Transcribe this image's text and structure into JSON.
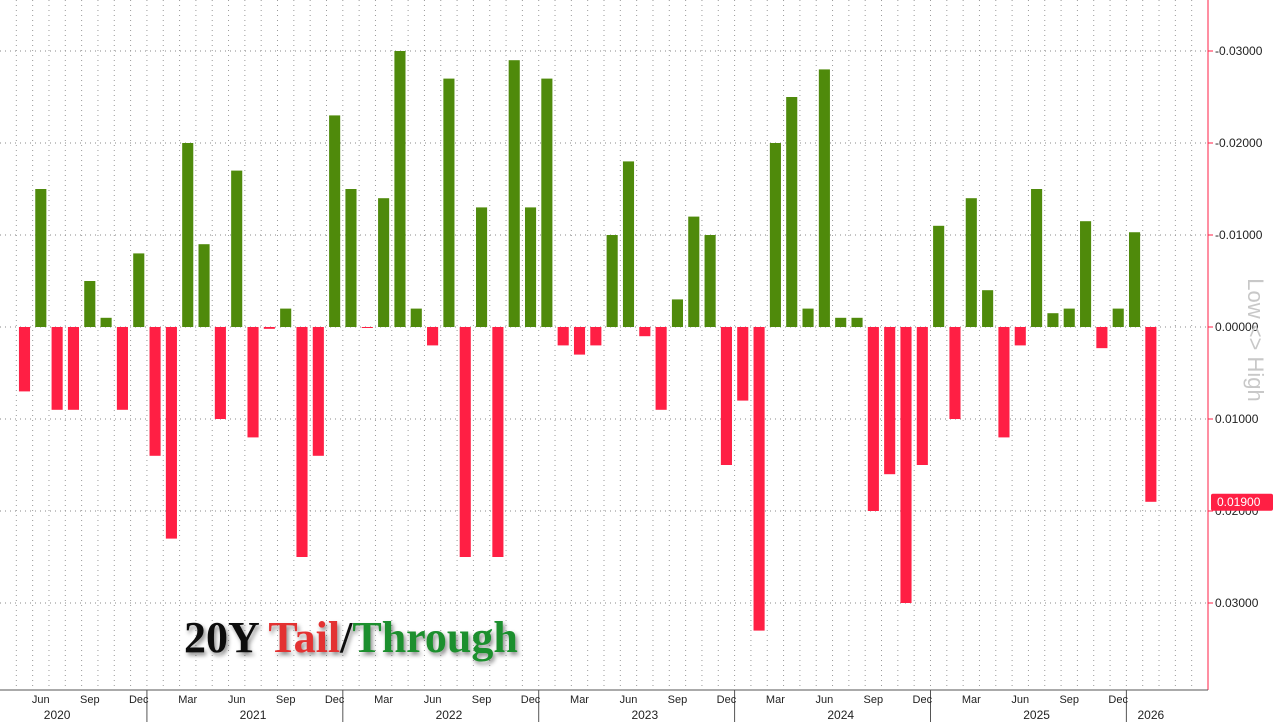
{
  "chart_data": {
    "type": "bar",
    "title": {
      "part1": "20Y ",
      "part2": "Tail",
      "part3": "/",
      "part4": "Through"
    },
    "ylabel": "Low <> High",
    "ylim": [
      -0.034,
      0.035
    ],
    "y_inverted": true,
    "y_ticks": [
      -0.03,
      -0.02,
      -0.01,
      0.0,
      0.01,
      0.02,
      0.03
    ],
    "y_tick_labels": [
      "-0.03000",
      "-0.02000",
      "-0.01000",
      "0.00000",
      "0.01000",
      "0.02000",
      "0.03000"
    ],
    "grid": true,
    "colors": {
      "tail": "#ff1f44",
      "through": "#4f8a0b",
      "title_tail": "#e33333",
      "title_through": "#1f8f2e",
      "title_black": "#111111"
    },
    "last_value": {
      "value": 0.019,
      "label": "0.01900"
    },
    "x_month_labels": [
      {
        "label": "Jun",
        "month": "2020-06"
      },
      {
        "label": "Sep",
        "month": "2020-09"
      },
      {
        "label": "Dec",
        "month": "2020-12"
      },
      {
        "label": "Mar",
        "month": "2021-03"
      },
      {
        "label": "Jun",
        "month": "2021-06"
      },
      {
        "label": "Sep",
        "month": "2021-09"
      },
      {
        "label": "Dec",
        "month": "2021-12"
      },
      {
        "label": "Mar",
        "month": "2022-03"
      },
      {
        "label": "Jun",
        "month": "2022-06"
      },
      {
        "label": "Sep",
        "month": "2022-09"
      },
      {
        "label": "Dec",
        "month": "2022-12"
      },
      {
        "label": "Mar",
        "month": "2023-03"
      },
      {
        "label": "Jun",
        "month": "2023-06"
      },
      {
        "label": "Sep",
        "month": "2023-09"
      },
      {
        "label": "Dec",
        "month": "2023-12"
      },
      {
        "label": "Mar",
        "month": "2024-03"
      },
      {
        "label": "Jun",
        "month": "2024-06"
      },
      {
        "label": "Sep",
        "month": "2024-09"
      },
      {
        "label": "Dec",
        "month": "2024-12"
      },
      {
        "label": "Mar",
        "month": "2025-03"
      },
      {
        "label": "Jun",
        "month": "2025-06"
      },
      {
        "label": "Sep",
        "month": "2025-09"
      },
      {
        "label": "Dec",
        "month": "2025-12"
      }
    ],
    "x_year_labels": [
      {
        "label": "2020",
        "month": "2020-07",
        "start": "2020-01"
      },
      {
        "label": "2021",
        "month": "2021-07",
        "start": "2021-01"
      },
      {
        "label": "2022",
        "month": "2022-07",
        "start": "2022-01"
      },
      {
        "label": "2023",
        "month": "2023-07",
        "start": "2023-01"
      },
      {
        "label": "2024",
        "month": "2024-07",
        "start": "2024-01"
      },
      {
        "label": "2025",
        "month": "2025-07",
        "start": "2025-01"
      },
      {
        "label": "2026",
        "month": "2026-02",
        "start": "2026-01"
      }
    ],
    "x_range": [
      "2020-04",
      "2026-05"
    ],
    "categories": [
      "2020-05",
      "2020-06",
      "2020-07",
      "2020-08",
      "2020-09",
      "2020-10",
      "2020-11",
      "2020-12",
      "2021-01",
      "2021-02",
      "2021-03",
      "2021-04",
      "2021-05",
      "2021-06",
      "2021-07",
      "2021-08",
      "2021-09",
      "2021-10",
      "2021-11",
      "2021-12",
      "2022-01",
      "2022-02",
      "2022-03",
      "2022-04",
      "2022-05",
      "2022-06",
      "2022-07",
      "2022-08",
      "2022-09",
      "2022-10",
      "2022-11",
      "2022-12",
      "2023-01",
      "2023-02",
      "2023-03",
      "2023-04",
      "2023-05",
      "2023-06",
      "2023-07",
      "2023-08",
      "2023-09",
      "2023-10",
      "2023-11",
      "2023-12",
      "2024-01",
      "2024-02",
      "2024-03",
      "2024-04",
      "2024-05",
      "2024-06",
      "2024-07",
      "2024-08",
      "2024-09",
      "2024-10",
      "2024-11",
      "2024-12",
      "2025-01",
      "2025-02",
      "2025-03",
      "2025-04",
      "2025-05",
      "2025-06",
      "2025-07",
      "2025-08",
      "2025-09",
      "2025-10",
      "2025-11",
      "2025-12",
      "2026-01",
      "2026-02"
    ],
    "values": [
      0.007,
      -0.015,
      0.009,
      0.009,
      -0.005,
      -0.001,
      0.009,
      -0.008,
      0.014,
      0.023,
      -0.02,
      -0.009,
      0.01,
      -0.017,
      0.012,
      0.0002,
      -0.002,
      0.025,
      0.014,
      -0.023,
      -0.015,
      0.0001,
      -0.014,
      -0.03,
      -0.002,
      0.002,
      -0.027,
      0.025,
      -0.013,
      0.025,
      -0.029,
      -0.013,
      -0.027,
      0.002,
      0.003,
      0.002,
      -0.01,
      -0.018,
      0.001,
      0.009,
      -0.003,
      -0.012,
      -0.01,
      0.015,
      0.008,
      0.033,
      -0.02,
      -0.025,
      -0.002,
      -0.028,
      -0.001,
      -0.001,
      0.02,
      0.016,
      0.03,
      0.015,
      -0.011,
      0.01,
      -0.014,
      -0.004,
      0.012,
      0.002,
      -0.015,
      -0.0015,
      -0.002,
      -0.0115,
      0.0023,
      -0.002,
      -0.0103,
      0.019
    ]
  }
}
